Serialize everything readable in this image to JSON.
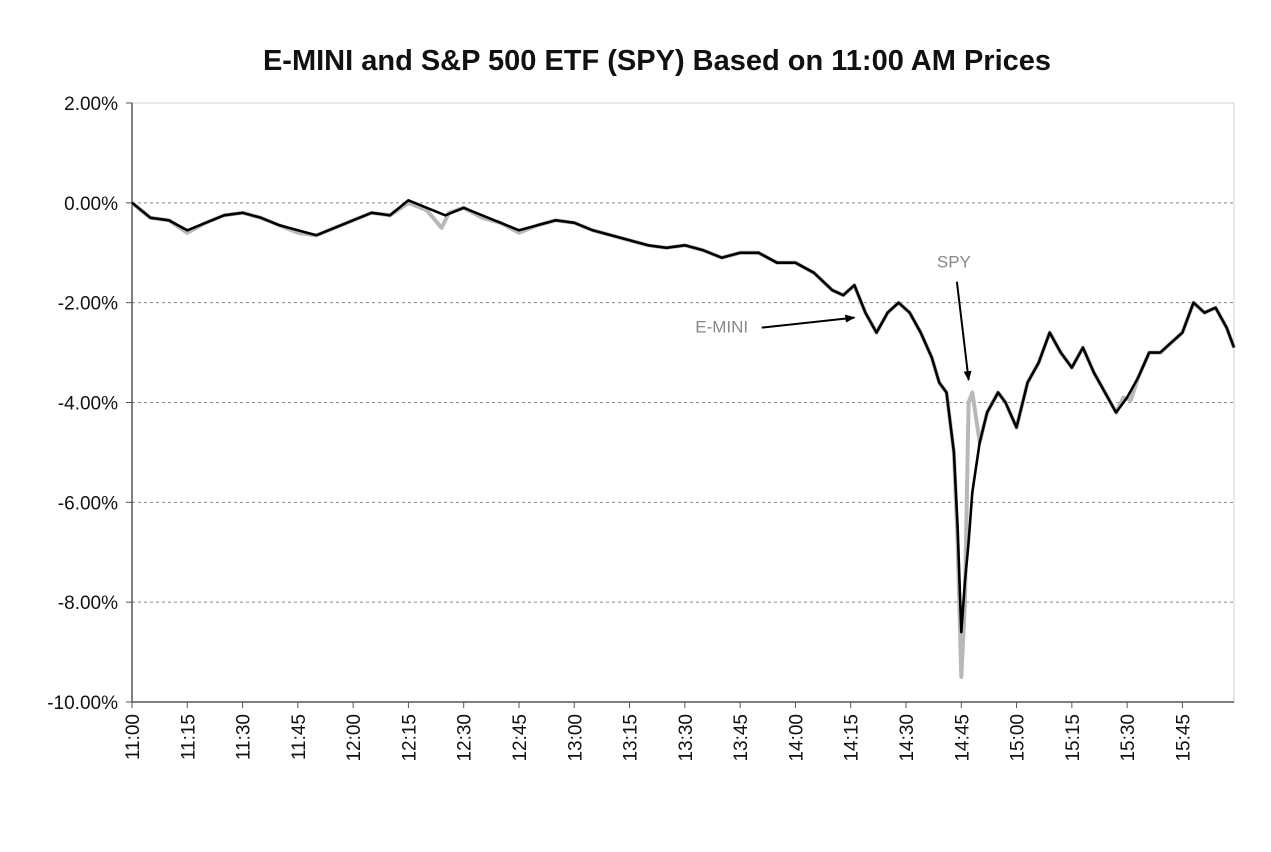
{
  "chart_data": {
    "type": "line",
    "title": "E-MINI and S&P 500 ETF (SPY) Based on 11:00 AM Prices",
    "xlabel": "",
    "ylabel": "",
    "ylim": [
      -10,
      2
    ],
    "xlim": [
      "11:00",
      "15:59"
    ],
    "grid": true,
    "y_ticks": [
      2,
      0,
      -2,
      -4,
      -6,
      -8,
      -10
    ],
    "y_tick_labels": [
      "2.00%",
      "0.00%",
      "-2.00%",
      "-4.00%",
      "-6.00%",
      "-8.00%",
      "-10.00%"
    ],
    "x_ticks": [
      "11:00",
      "11:15",
      "11:30",
      "11:45",
      "12:00",
      "12:15",
      "12:30",
      "12:45",
      "13:00",
      "13:15",
      "13:30",
      "13:45",
      "14:00",
      "14:15",
      "14:30",
      "14:45",
      "15:00",
      "15:15",
      "15:30",
      "15:45"
    ],
    "colors": {
      "emini": "#000000",
      "spy": "#b8b8b8",
      "grid": "#888888",
      "axis": "#555555",
      "arrow": "#000000"
    },
    "annotations": [
      {
        "text": "E-MINI",
        "points_to": {
          "x": "14:16",
          "y": -2.3
        },
        "label_at": {
          "x": "13:40",
          "y": -2.6
        }
      },
      {
        "text": "SPY",
        "points_to": {
          "x": "14:47",
          "y": -3.55
        },
        "label_at": {
          "x": "14:43",
          "y": -1.3
        }
      }
    ],
    "series": [
      {
        "name": "E-MINI",
        "x": [
          "11:00",
          "11:05",
          "11:10",
          "11:15",
          "11:20",
          "11:25",
          "11:30",
          "11:35",
          "11:40",
          "11:45",
          "11:50",
          "11:55",
          "12:00",
          "12:05",
          "12:10",
          "12:15",
          "12:20",
          "12:25",
          "12:30",
          "12:35",
          "12:40",
          "12:45",
          "12:50",
          "12:55",
          "13:00",
          "13:05",
          "13:10",
          "13:15",
          "13:20",
          "13:25",
          "13:30",
          "13:35",
          "13:40",
          "13:45",
          "13:50",
          "13:55",
          "14:00",
          "14:05",
          "14:10",
          "14:13",
          "14:16",
          "14:19",
          "14:22",
          "14:25",
          "14:28",
          "14:31",
          "14:34",
          "14:37",
          "14:39",
          "14:41",
          "14:43",
          "14:44",
          "14:45",
          "14:46",
          "14:47",
          "14:48",
          "14:50",
          "14:52",
          "14:55",
          "14:57",
          "15:00",
          "15:03",
          "15:06",
          "15:09",
          "15:12",
          "15:15",
          "15:18",
          "15:21",
          "15:24",
          "15:27",
          "15:30",
          "15:33",
          "15:36",
          "15:39",
          "15:42",
          "15:45",
          "15:48",
          "15:51",
          "15:54",
          "15:57",
          "15:59"
        ],
        "y": [
          0.0,
          -0.3,
          -0.35,
          -0.55,
          -0.4,
          -0.25,
          -0.2,
          -0.3,
          -0.45,
          -0.55,
          -0.65,
          -0.5,
          -0.35,
          -0.2,
          -0.25,
          0.05,
          -0.1,
          -0.25,
          -0.1,
          -0.25,
          -0.4,
          -0.55,
          -0.45,
          -0.35,
          -0.4,
          -0.55,
          -0.65,
          -0.75,
          -0.85,
          -0.9,
          -0.85,
          -0.95,
          -1.1,
          -1.0,
          -1.0,
          -1.2,
          -1.2,
          -1.4,
          -1.75,
          -1.85,
          -1.65,
          -2.2,
          -2.6,
          -2.2,
          -2.0,
          -2.2,
          -2.6,
          -3.1,
          -3.6,
          -3.8,
          -5.0,
          -6.5,
          -8.6,
          -7.6,
          -6.8,
          -5.8,
          -4.8,
          -4.2,
          -3.8,
          -4.0,
          -4.5,
          -3.6,
          -3.2,
          -2.6,
          -3.0,
          -3.3,
          -2.9,
          -3.4,
          -3.8,
          -4.2,
          -3.9,
          -3.5,
          -3.0,
          -3.0,
          -2.8,
          -2.6,
          -2.0,
          -2.2,
          -2.1,
          -2.5,
          -2.9
        ]
      },
      {
        "name": "SPY",
        "x": [
          "11:00",
          "11:05",
          "11:10",
          "11:15",
          "11:20",
          "11:25",
          "11:30",
          "11:35",
          "11:40",
          "11:45",
          "11:50",
          "11:55",
          "12:00",
          "12:05",
          "12:10",
          "12:15",
          "12:20",
          "12:24",
          "12:26",
          "12:30",
          "12:35",
          "12:40",
          "12:45",
          "12:50",
          "12:55",
          "13:00",
          "13:05",
          "13:10",
          "13:15",
          "13:20",
          "13:25",
          "13:30",
          "13:35",
          "13:40",
          "13:45",
          "13:50",
          "13:55",
          "14:00",
          "14:05",
          "14:10",
          "14:13",
          "14:16",
          "14:19",
          "14:22",
          "14:25",
          "14:28",
          "14:31",
          "14:34",
          "14:37",
          "14:39",
          "14:41",
          "14:43",
          "14:44",
          "14:45",
          "14:46",
          "14:47",
          "14:48",
          "14:50",
          "14:52",
          "14:55",
          "14:57",
          "15:00",
          "15:03",
          "15:06",
          "15:09",
          "15:12",
          "15:15",
          "15:18",
          "15:21",
          "15:24",
          "15:27",
          "15:29",
          "15:31",
          "15:33",
          "15:36",
          "15:39",
          "15:42",
          "15:45",
          "15:48",
          "15:51",
          "15:54",
          "15:57",
          "15:59"
        ],
        "y": [
          0.0,
          -0.3,
          -0.35,
          -0.6,
          -0.4,
          -0.25,
          -0.2,
          -0.3,
          -0.45,
          -0.6,
          -0.65,
          -0.5,
          -0.35,
          -0.2,
          -0.25,
          0.0,
          -0.15,
          -0.5,
          -0.2,
          -0.1,
          -0.3,
          -0.4,
          -0.6,
          -0.45,
          -0.35,
          -0.4,
          -0.55,
          -0.65,
          -0.75,
          -0.85,
          -0.9,
          -0.85,
          -0.95,
          -1.1,
          -1.0,
          -1.0,
          -1.2,
          -1.2,
          -1.4,
          -1.75,
          -1.85,
          -1.65,
          -2.2,
          -2.6,
          -2.2,
          -2.0,
          -2.2,
          -2.6,
          -3.1,
          -3.6,
          -3.8,
          -5.0,
          -6.8,
          -9.5,
          -8.0,
          -4.0,
          -3.8,
          -4.8,
          -4.2,
          -3.8,
          -4.0,
          -4.5,
          -3.6,
          -3.2,
          -2.6,
          -3.0,
          -3.3,
          -2.9,
          -3.4,
          -3.8,
          -4.2,
          -3.9,
          -3.95,
          -3.5,
          -3.0,
          -3.0,
          -2.8,
          -2.6,
          -2.0,
          -2.2,
          -2.1,
          -2.5,
          -2.9
        ]
      }
    ]
  }
}
